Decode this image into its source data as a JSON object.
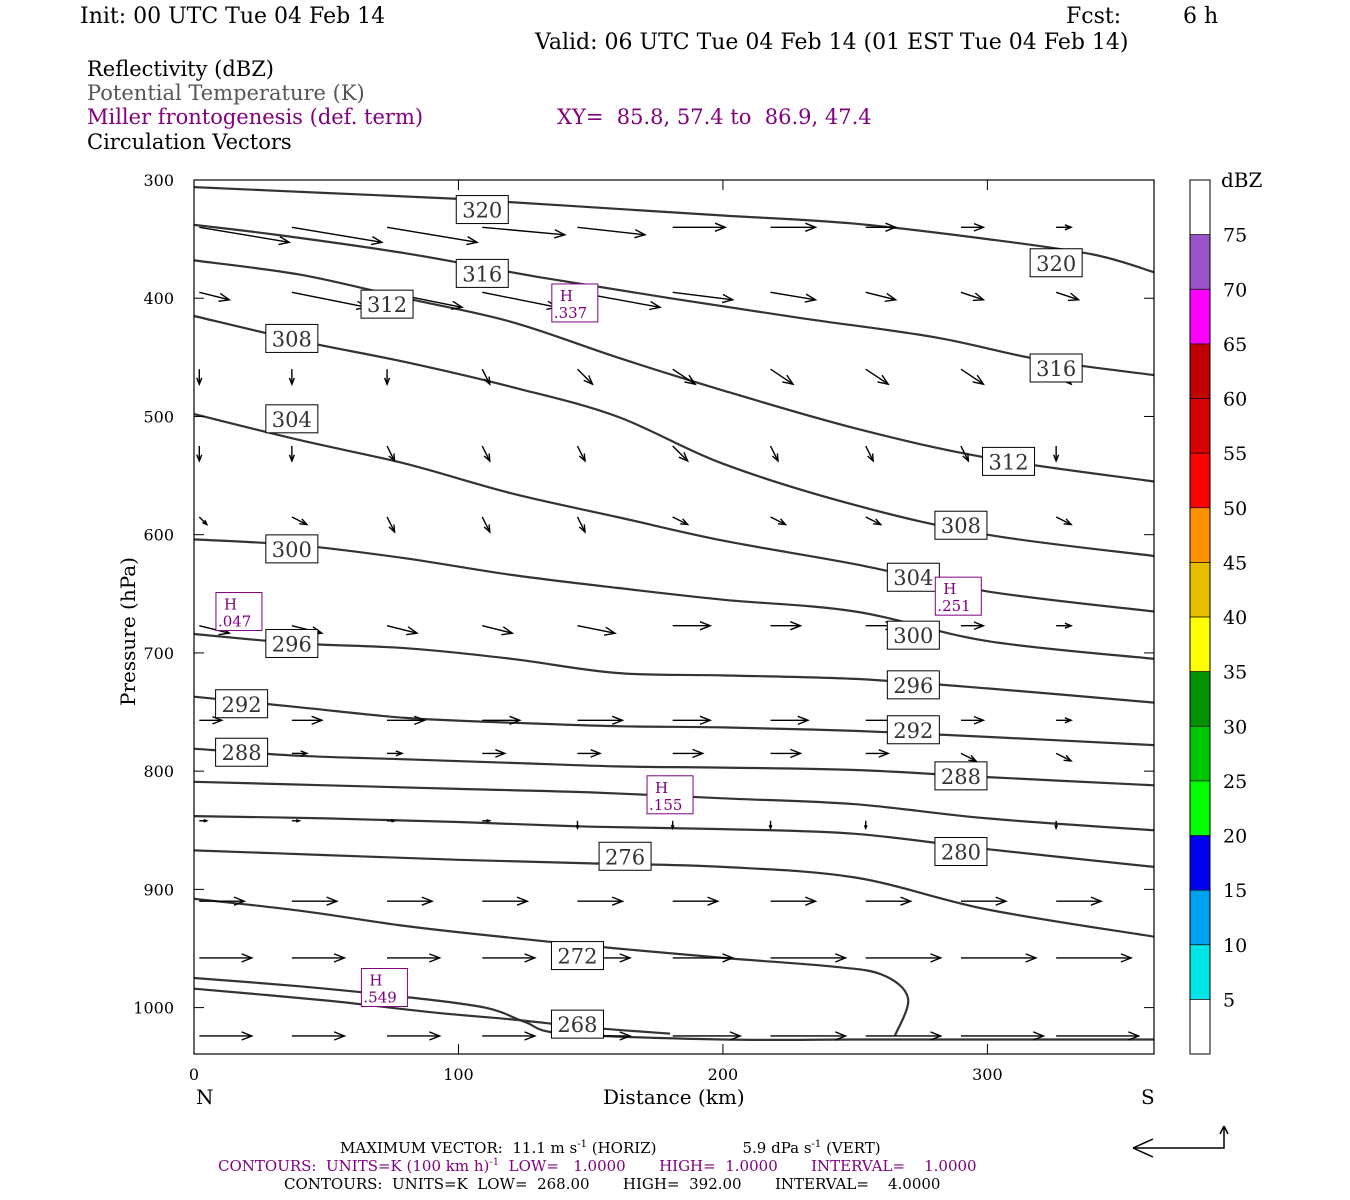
{
  "header": {
    "init": "Init: 00 UTC Tue 04 Feb 14",
    "fcst_label": "Fcst:",
    "fcst_value": "6 h",
    "valid": "Valid: 06 UTC Tue 04 Feb 14 (01 EST Tue 04 Feb 14)"
  },
  "fields": {
    "reflectivity": "Reflectivity (dBZ)",
    "theta": "Potential Temperature (K)",
    "miller": "Miller frontogenesis (def. term)",
    "xy": "XY=  85.8, 57.4 to  86.9, 47.4",
    "vectors": "Circulation Vectors"
  },
  "colors": {
    "purple": "#800080",
    "theta_gray": "#555555",
    "contour": "#333333"
  },
  "footer": {
    "max_vector": "MAXIMUM VECTOR:  11.1 m s",
    "max_vector_unit1": "-1",
    "max_vector_horiz": " (HORIZ)",
    "max_vector_vert": "5.9 dPa s",
    "max_vector_unit2": "-1",
    "max_vector_vert_tail": " (VERT)",
    "contours1_a": "CONTOURS:  UNITS=K (100 km h)",
    "contours1_sup": "-1",
    "contours1_b": "  LOW=   1.0000       HIGH=  1.0000       INTERVAL=    1.0000",
    "contours2": "CONTOURS:  UNITS=K  LOW=  268.00       HIGH=  392.00       INTERVAL=    4.0000"
  },
  "chart_data": {
    "type": "line",
    "xlabel": "Distance (km)",
    "ylabel": "Pressure (hPa)",
    "x_end_labels": [
      "N",
      "S"
    ],
    "xlim": [
      0,
      363
    ],
    "ylim": [
      300,
      1040
    ],
    "xticks": [
      0,
      100,
      200,
      300
    ],
    "yticks": [
      300,
      400,
      500,
      600,
      700,
      800,
      900,
      1000
    ],
    "colorbar": {
      "title": "dBZ",
      "levels": [
        5,
        10,
        15,
        20,
        25,
        30,
        35,
        40,
        45,
        50,
        55,
        60,
        65,
        70,
        75
      ],
      "colors": [
        "#ffffff",
        "#00e6e6",
        "#00a0f0",
        "#0000f0",
        "#00ff00",
        "#00c800",
        "#009000",
        "#ffff00",
        "#e6be00",
        "#ff9000",
        "#ff0000",
        "#d60000",
        "#c00000",
        "#ff00ff",
        "#9955c9",
        "#ffffff"
      ]
    },
    "isentropes": [
      {
        "theta": 320,
        "points": [
          [
            0,
            306
          ],
          [
            50,
            311
          ],
          [
            100,
            316
          ],
          [
            150,
            323
          ],
          [
            200,
            330
          ],
          [
            250,
            337
          ],
          [
            300,
            350
          ],
          [
            340,
            363
          ],
          [
            363,
            378
          ]
        ]
      },
      {
        "theta": 316,
        "points": [
          [
            0,
            338
          ],
          [
            30,
            346
          ],
          [
            80,
            362
          ],
          [
            130,
            382
          ],
          [
            180,
            400
          ],
          [
            230,
            417
          ],
          [
            280,
            433
          ],
          [
            320,
            452
          ],
          [
            363,
            465
          ]
        ]
      },
      {
        "theta": 312,
        "points": [
          [
            0,
            368
          ],
          [
            40,
            380
          ],
          [
            80,
            400
          ],
          [
            120,
            420
          ],
          [
            160,
            450
          ],
          [
            200,
            478
          ],
          [
            250,
            510
          ],
          [
            300,
            535
          ],
          [
            363,
            555
          ]
        ]
      },
      {
        "theta": 308,
        "points": [
          [
            0,
            415
          ],
          [
            40,
            436
          ],
          [
            80,
            454
          ],
          [
            120,
            475
          ],
          [
            160,
            500
          ],
          [
            200,
            540
          ],
          [
            250,
            575
          ],
          [
            300,
            600
          ],
          [
            363,
            618
          ]
        ]
      },
      {
        "theta": 304,
        "points": [
          [
            0,
            498
          ],
          [
            40,
            520
          ],
          [
            80,
            540
          ],
          [
            120,
            565
          ],
          [
            160,
            585
          ],
          [
            200,
            605
          ],
          [
            250,
            625
          ],
          [
            300,
            648
          ],
          [
            363,
            665
          ]
        ]
      },
      {
        "theta": 300,
        "points": [
          [
            0,
            604
          ],
          [
            40,
            609
          ],
          [
            80,
            620
          ],
          [
            120,
            634
          ],
          [
            160,
            645
          ],
          [
            200,
            655
          ],
          [
            250,
            665
          ],
          [
            300,
            690
          ],
          [
            363,
            705
          ]
        ]
      },
      {
        "theta": 296,
        "points": [
          [
            0,
            684
          ],
          [
            40,
            692
          ],
          [
            80,
            696
          ],
          [
            120,
            705
          ],
          [
            160,
            717
          ],
          [
            200,
            719
          ],
          [
            250,
            722
          ],
          [
            300,
            730
          ],
          [
            363,
            742
          ]
        ]
      },
      {
        "theta": 292,
        "points": [
          [
            0,
            737
          ],
          [
            40,
            746
          ],
          [
            80,
            755
          ],
          [
            120,
            759
          ],
          [
            160,
            762
          ],
          [
            200,
            763
          ],
          [
            250,
            766
          ],
          [
            300,
            771
          ],
          [
            363,
            778
          ]
        ]
      },
      {
        "theta": 288,
        "points": [
          [
            0,
            781
          ],
          [
            40,
            787
          ],
          [
            80,
            790
          ],
          [
            120,
            793
          ],
          [
            160,
            796
          ],
          [
            200,
            797
          ],
          [
            250,
            799
          ],
          [
            300,
            805
          ],
          [
            363,
            812
          ]
        ]
      },
      {
        "theta": 284,
        "points": [
          [
            0,
            809
          ],
          [
            50,
            812
          ],
          [
            100,
            815
          ],
          [
            150,
            818
          ],
          [
            200,
            823
          ],
          [
            250,
            828
          ],
          [
            300,
            840
          ],
          [
            363,
            850
          ]
        ]
      },
      {
        "theta": 280,
        "points": [
          [
            0,
            838
          ],
          [
            50,
            840
          ],
          [
            100,
            843
          ],
          [
            150,
            847
          ],
          [
            200,
            849
          ],
          [
            250,
            853
          ],
          [
            300,
            866
          ],
          [
            363,
            881
          ]
        ]
      },
      {
        "theta": 276,
        "points": [
          [
            0,
            867
          ],
          [
            50,
            871
          ],
          [
            100,
            875
          ],
          [
            150,
            878
          ],
          [
            200,
            881
          ],
          [
            250,
            890
          ],
          [
            300,
            917
          ],
          [
            363,
            940
          ]
        ]
      },
      {
        "theta": 272,
        "points": [
          [
            0,
            908
          ],
          [
            40,
            918
          ],
          [
            80,
            931
          ],
          [
            120,
            941
          ],
          [
            160,
            950
          ],
          [
            200,
            958
          ],
          [
            240,
            965
          ],
          [
            260,
            972
          ],
          [
            270,
            992
          ],
          [
            265,
            1024
          ]
        ]
      },
      {
        "theta": 268,
        "points": [
          [
            0,
            975
          ],
          [
            40,
            982
          ],
          [
            80,
            991
          ],
          [
            110,
            1000
          ],
          [
            125,
            1012
          ],
          [
            140,
            1022
          ],
          [
            200,
            1027
          ],
          [
            250,
            1027
          ],
          [
            300,
            1027
          ],
          [
            363,
            1027
          ]
        ]
      },
      {
        "theta": 0,
        "points": [
          [
            0,
            984
          ],
          [
            50,
            994
          ],
          [
            90,
            1004
          ],
          [
            120,
            1010
          ],
          [
            150,
            1017
          ],
          [
            180,
            1022
          ]
        ]
      }
    ],
    "contour_labels": [
      {
        "theta": "320",
        "x": 109,
        "p": 325
      },
      {
        "theta": "320",
        "x": 326,
        "p": 370
      },
      {
        "theta": "316",
        "x": 109,
        "p": 379
      },
      {
        "theta": "316",
        "x": 326,
        "p": 459
      },
      {
        "theta": "312",
        "x": 73,
        "p": 405
      },
      {
        "theta": "312",
        "x": 308,
        "p": 538
      },
      {
        "theta": "308",
        "x": 37,
        "p": 434
      },
      {
        "theta": "308",
        "x": 290,
        "p": 592
      },
      {
        "theta": "304",
        "x": 37,
        "p": 502
      },
      {
        "theta": "304",
        "x": 272,
        "p": 636
      },
      {
        "theta": "300",
        "x": 37,
        "p": 612
      },
      {
        "theta": "300",
        "x": 272,
        "p": 685
      },
      {
        "theta": "296",
        "x": 37,
        "p": 692
      },
      {
        "theta": "296",
        "x": 272,
        "p": 727
      },
      {
        "theta": "292",
        "x": 18,
        "p": 743
      },
      {
        "theta": "292",
        "x": 272,
        "p": 765
      },
      {
        "theta": "288",
        "x": 18,
        "p": 784
      },
      {
        "theta": "288",
        "x": 290,
        "p": 804
      },
      {
        "theta": "280",
        "x": 290,
        "p": 868
      },
      {
        "theta": "276",
        "x": 163,
        "p": 872
      },
      {
        "theta": "272",
        "x": 145,
        "p": 956
      },
      {
        "theta": "268",
        "x": 145,
        "p": 1014
      }
    ],
    "highs": [
      {
        "label": "H",
        "value": ".337",
        "x": 144,
        "p": 404
      },
      {
        "label": "H",
        "value": ".251",
        "x": 289,
        "p": 652
      },
      {
        "label": "H",
        "value": ".047",
        "x": 17,
        "p": 665
      },
      {
        "label": "H",
        "value": ".155",
        "x": 180,
        "p": 820
      },
      {
        "label": "H",
        "value": ".549",
        "x": 72,
        "p": 983
      }
    ],
    "vector_columns_x": [
      2,
      37,
      73,
      109,
      145,
      181,
      218,
      254,
      290,
      326
    ],
    "vector_rows": [
      {
        "p": 340,
        "u": [
          12,
          12,
          12,
          11,
          9,
          7,
          6,
          4,
          3,
          2
        ],
        "w": [
          -2,
          -2,
          -2,
          -1,
          -1,
          0,
          0,
          0,
          0,
          0
        ]
      },
      {
        "p": 395,
        "u": [
          4,
          10,
          10,
          10,
          11,
          8,
          6,
          4,
          3,
          3
        ],
        "w": [
          -1,
          -2,
          -2,
          -2,
          -2,
          -1,
          -1,
          -1,
          -1,
          -1
        ]
      },
      {
        "p": 460,
        "u": [
          0,
          0,
          0,
          1,
          2,
          3,
          3,
          3,
          3,
          2
        ],
        "w": [
          -2,
          -2,
          -2,
          -2,
          -2,
          -2,
          -2,
          -2,
          -2,
          -2
        ]
      },
      {
        "p": 525,
        "u": [
          0,
          0,
          1,
          1,
          1,
          2,
          1,
          1,
          1,
          0
        ],
        "w": [
          -2,
          -2,
          -2,
          -2,
          -2,
          -2,
          -2,
          -2,
          -2,
          -2
        ]
      },
      {
        "p": 585,
        "u": [
          1,
          2,
          1,
          1,
          1,
          2,
          2,
          2,
          2,
          2
        ],
        "w": [
          -1,
          -1,
          -2,
          -2,
          -2,
          -1,
          -1,
          -1,
          -1,
          -1
        ]
      },
      {
        "p": 677,
        "u": [
          4,
          4,
          4,
          4,
          5,
          5,
          4,
          4,
          3,
          2
        ],
        "w": [
          -1,
          -1,
          -1,
          -1,
          -1,
          0,
          0,
          0,
          0,
          0
        ]
      },
      {
        "p": 757,
        "u": [
          3,
          4,
          5,
          5,
          6,
          5,
          5,
          5,
          3,
          2
        ],
        "w": [
          0,
          0,
          0,
          0,
          0,
          0,
          0,
          0,
          0,
          0
        ]
      },
      {
        "p": 785,
        "u": [
          0,
          2,
          2,
          3,
          3,
          4,
          4,
          3,
          2,
          2
        ],
        "w": [
          0,
          0,
          0,
          0,
          0,
          0,
          0,
          0,
          -1,
          -1
        ]
      },
      {
        "p": 842,
        "u": [
          1,
          1,
          1,
          1,
          0,
          0,
          0,
          0,
          0,
          0
        ],
        "w": [
          0,
          0,
          0,
          0,
          -1,
          -1,
          -1,
          -1,
          0,
          -1
        ]
      },
      {
        "p": 910,
        "u": [
          6,
          6,
          6,
          6,
          6,
          6,
          6,
          6,
          6,
          6
        ],
        "w": [
          0,
          0,
          0,
          0,
          0,
          0,
          0,
          0,
          0,
          0
        ]
      },
      {
        "p": 958,
        "u": [
          7,
          7,
          7,
          7,
          7,
          8,
          10,
          10,
          10,
          10
        ],
        "w": [
          0,
          0,
          0,
          0,
          0,
          0,
          0,
          0,
          0,
          0
        ]
      },
      {
        "p": 1024,
        "u": [
          7,
          7,
          7,
          7,
          7,
          9,
          10,
          10,
          11,
          11
        ],
        "w": [
          0,
          0,
          0,
          0,
          0,
          0,
          0,
          0,
          0,
          0
        ]
      }
    ]
  }
}
